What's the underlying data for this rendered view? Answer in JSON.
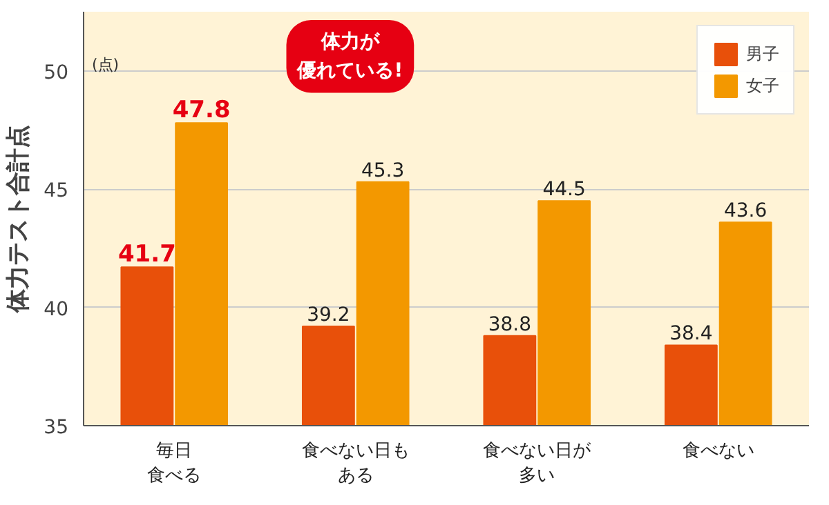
{
  "chart_data": {
    "type": "bar",
    "ylabel": "体力テスト合計点",
    "categories": [
      "毎日食べる",
      "食べない日もある",
      "食べない日が多い",
      "食べない"
    ],
    "series": [
      {
        "name": "男子",
        "color": "#e8500a",
        "values": [
          41.7,
          39.2,
          38.8,
          38.4
        ]
      },
      {
        "name": "女子",
        "color": "#f39800",
        "values": [
          47.8,
          45.3,
          44.5,
          43.6
        ]
      }
    ],
    "ylim": [
      35,
      52.5
    ],
    "yticks": [
      35,
      40,
      45,
      50
    ],
    "data_labels": true,
    "grid": "y",
    "legend": "top right",
    "annotations": [
      "(点)",
      "体力が優れている!"
    ]
  }
}
